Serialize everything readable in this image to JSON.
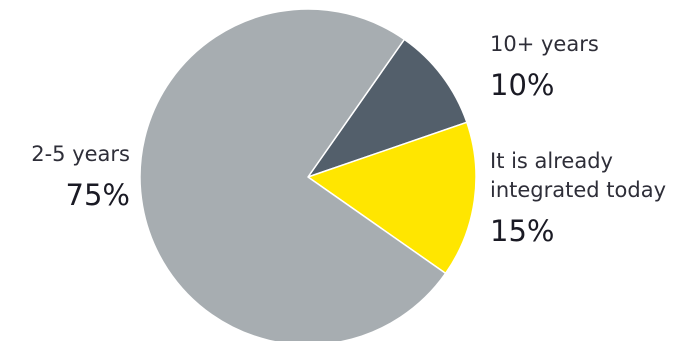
{
  "chart_data": {
    "type": "pie",
    "slices": [
      {
        "label": "10+ years",
        "value": 10,
        "display": "10%",
        "color": "#535f6b"
      },
      {
        "label": "It is already integrated today",
        "label_lines": [
          "It is already",
          "integrated today"
        ],
        "value": 15,
        "display": "15%",
        "color": "#ffe600"
      },
      {
        "label": "2-5 years",
        "value": 75,
        "display": "75%",
        "color": "#a7adb1"
      }
    ],
    "start_angle_deg": 35
  }
}
